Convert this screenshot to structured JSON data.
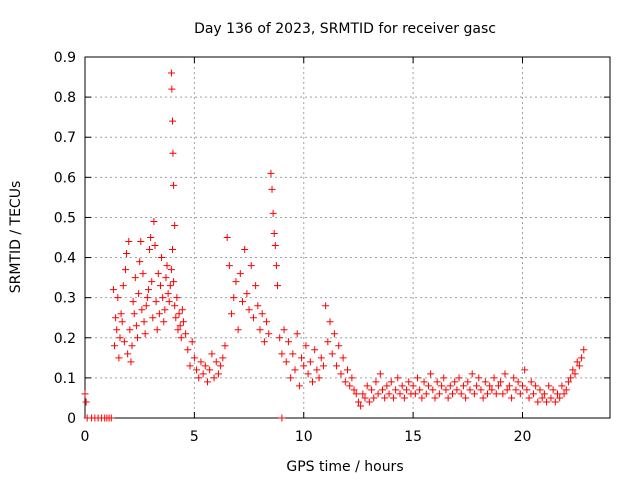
{
  "chart_data": {
    "type": "scatter",
    "title": "Day 136 of 2023, SRMTID for receiver gasc",
    "xlabel": "GPS time / hours",
    "ylabel": "SRMTID / TECUs",
    "xlim": [
      0,
      24
    ],
    "ylim": [
      0,
      0.9
    ],
    "xticks": [
      0,
      5,
      10,
      15,
      20
    ],
    "yticks": [
      0,
      0.1,
      0.2,
      0.3,
      0.4,
      0.5,
      0.6,
      0.7,
      0.8,
      0.9
    ],
    "xtick_labels": [
      "0",
      "5",
      "10",
      "15",
      "20"
    ],
    "ytick_labels": [
      "0",
      "0.1",
      "0.2",
      "0.3",
      "0.4",
      "0.5",
      "0.6",
      "0.7",
      "0.8",
      "0.9"
    ],
    "grid": true,
    "marker": "+",
    "color": "#ff0000",
    "series": [
      {
        "name": "SRMTID",
        "x": [
          0.0,
          0.05,
          0.1,
          0.3,
          0.45,
          0.6,
          0.75,
          0.9,
          1.0,
          1.1,
          1.2,
          1.3,
          1.35,
          1.4,
          1.45,
          1.5,
          1.55,
          1.6,
          1.65,
          1.7,
          1.75,
          1.8,
          1.85,
          1.9,
          1.95,
          2.0,
          2.05,
          2.1,
          2.15,
          2.2,
          2.25,
          2.3,
          2.35,
          2.4,
          2.45,
          2.5,
          2.55,
          2.6,
          2.65,
          2.7,
          2.75,
          2.8,
          2.85,
          2.9,
          2.95,
          3.0,
          3.05,
          3.1,
          3.15,
          3.2,
          3.25,
          3.3,
          3.35,
          3.4,
          3.45,
          3.5,
          3.55,
          3.6,
          3.65,
          3.7,
          3.75,
          3.8,
          3.85,
          3.9,
          3.95,
          4.0,
          4.05,
          4.1,
          4.15,
          4.2,
          4.25,
          4.3,
          4.35,
          4.4,
          4.45,
          4.5,
          3.95,
          3.97,
          4.0,
          4.02,
          4.05,
          4.1,
          4.6,
          4.7,
          4.8,
          4.9,
          5.0,
          5.1,
          5.2,
          5.3,
          5.4,
          5.5,
          5.6,
          5.7,
          5.8,
          5.9,
          6.0,
          6.1,
          6.2,
          6.3,
          6.4,
          6.5,
          6.6,
          6.7,
          6.8,
          6.9,
          7.0,
          7.1,
          7.2,
          7.3,
          7.4,
          7.5,
          7.6,
          7.7,
          7.8,
          7.9,
          8.0,
          8.1,
          8.2,
          8.3,
          8.4,
          8.5,
          8.55,
          8.6,
          8.65,
          8.7,
          8.75,
          8.8,
          8.9,
          9.0,
          9.0,
          9.1,
          9.2,
          9.3,
          9.4,
          9.5,
          9.6,
          9.7,
          9.8,
          9.9,
          10.0,
          10.1,
          10.2,
          10.3,
          10.4,
          10.5,
          10.6,
          10.7,
          10.8,
          10.9,
          11.0,
          11.1,
          11.2,
          11.3,
          11.4,
          11.5,
          11.6,
          11.7,
          11.8,
          11.9,
          12.0,
          12.1,
          12.2,
          12.3,
          12.4,
          12.5,
          12.6,
          12.7,
          12.8,
          12.9,
          13.0,
          13.1,
          13.2,
          13.3,
          13.4,
          13.5,
          13.6,
          13.7,
          13.8,
          13.9,
          14.0,
          14.1,
          14.2,
          14.3,
          14.4,
          14.5,
          14.6,
          14.7,
          14.8,
          14.9,
          15.0,
          15.1,
          15.2,
          15.3,
          15.4,
          15.5,
          15.6,
          15.7,
          15.8,
          15.9,
          16.0,
          16.1,
          16.2,
          16.3,
          16.4,
          16.5,
          16.6,
          16.7,
          16.8,
          16.9,
          17.0,
          17.1,
          17.2,
          17.3,
          17.4,
          17.5,
          17.6,
          17.7,
          17.8,
          17.9,
          18.0,
          18.1,
          18.2,
          18.3,
          18.4,
          18.5,
          18.6,
          18.7,
          18.8,
          18.9,
          19.0,
          19.1,
          19.2,
          19.3,
          19.4,
          19.5,
          19.6,
          19.7,
          19.8,
          19.9,
          20.0,
          20.1,
          20.2,
          20.3,
          20.4,
          20.5,
          20.6,
          20.7,
          20.8,
          20.9,
          21.0,
          21.1,
          21.2,
          21.3,
          21.4,
          21.5,
          21.6,
          21.7,
          21.8,
          21.9,
          22.0,
          22.1,
          22.2,
          22.3,
          22.4,
          22.5,
          22.6,
          22.7,
          22.8
        ],
        "y": [
          0.06,
          0.04,
          0.0,
          0.0,
          0.0,
          0.0,
          0.0,
          0.0,
          0.0,
          0.0,
          0.0,
          0.32,
          0.18,
          0.25,
          0.22,
          0.3,
          0.15,
          0.2,
          0.26,
          0.24,
          0.33,
          0.19,
          0.37,
          0.41,
          0.16,
          0.44,
          0.22,
          0.14,
          0.18,
          0.29,
          0.26,
          0.35,
          0.23,
          0.2,
          0.31,
          0.39,
          0.44,
          0.27,
          0.36,
          0.24,
          0.21,
          0.28,
          0.3,
          0.32,
          0.42,
          0.45,
          0.34,
          0.25,
          0.49,
          0.43,
          0.29,
          0.22,
          0.36,
          0.26,
          0.33,
          0.4,
          0.3,
          0.24,
          0.27,
          0.35,
          0.38,
          0.31,
          0.29,
          0.33,
          0.37,
          0.42,
          0.34,
          0.28,
          0.25,
          0.3,
          0.22,
          0.26,
          0.23,
          0.2,
          0.27,
          0.24,
          0.86,
          0.82,
          0.74,
          0.66,
          0.58,
          0.48,
          0.21,
          0.17,
          0.13,
          0.19,
          0.15,
          0.12,
          0.1,
          0.14,
          0.11,
          0.13,
          0.09,
          0.12,
          0.16,
          0.1,
          0.14,
          0.11,
          0.13,
          0.15,
          0.18,
          0.45,
          0.38,
          0.26,
          0.3,
          0.34,
          0.22,
          0.36,
          0.29,
          0.42,
          0.31,
          0.27,
          0.38,
          0.25,
          0.33,
          0.28,
          0.22,
          0.26,
          0.19,
          0.24,
          0.21,
          0.61,
          0.57,
          0.51,
          0.46,
          0.43,
          0.38,
          0.33,
          0.2,
          0.16,
          0.0,
          0.22,
          0.14,
          0.19,
          0.1,
          0.16,
          0.12,
          0.21,
          0.08,
          0.15,
          0.13,
          0.18,
          0.11,
          0.14,
          0.09,
          0.17,
          0.12,
          0.1,
          0.15,
          0.13,
          0.28,
          0.19,
          0.24,
          0.16,
          0.21,
          0.13,
          0.18,
          0.11,
          0.15,
          0.09,
          0.12,
          0.08,
          0.1,
          0.07,
          0.06,
          0.04,
          0.03,
          0.06,
          0.05,
          0.08,
          0.04,
          0.07,
          0.05,
          0.09,
          0.06,
          0.11,
          0.07,
          0.05,
          0.08,
          0.06,
          0.09,
          0.05,
          0.07,
          0.1,
          0.06,
          0.08,
          0.05,
          0.07,
          0.09,
          0.06,
          0.08,
          0.06,
          0.1,
          0.07,
          0.05,
          0.09,
          0.06,
          0.08,
          0.11,
          0.07,
          0.05,
          0.09,
          0.06,
          0.08,
          0.1,
          0.07,
          0.05,
          0.08,
          0.06,
          0.09,
          0.07,
          0.1,
          0.06,
          0.08,
          0.05,
          0.09,
          0.07,
          0.11,
          0.06,
          0.08,
          0.1,
          0.07,
          0.05,
          0.09,
          0.06,
          0.08,
          0.07,
          0.1,
          0.06,
          0.08,
          0.09,
          0.06,
          0.11,
          0.07,
          0.08,
          0.05,
          0.1,
          0.07,
          0.09,
          0.06,
          0.08,
          0.12,
          0.07,
          0.05,
          0.09,
          0.06,
          0.08,
          0.04,
          0.07,
          0.05,
          0.06,
          0.04,
          0.08,
          0.05,
          0.07,
          0.04,
          0.06,
          0.05,
          0.08,
          0.06,
          0.07,
          0.09,
          0.1,
          0.12,
          0.11,
          0.14,
          0.13,
          0.15,
          0.17
        ]
      }
    ]
  }
}
